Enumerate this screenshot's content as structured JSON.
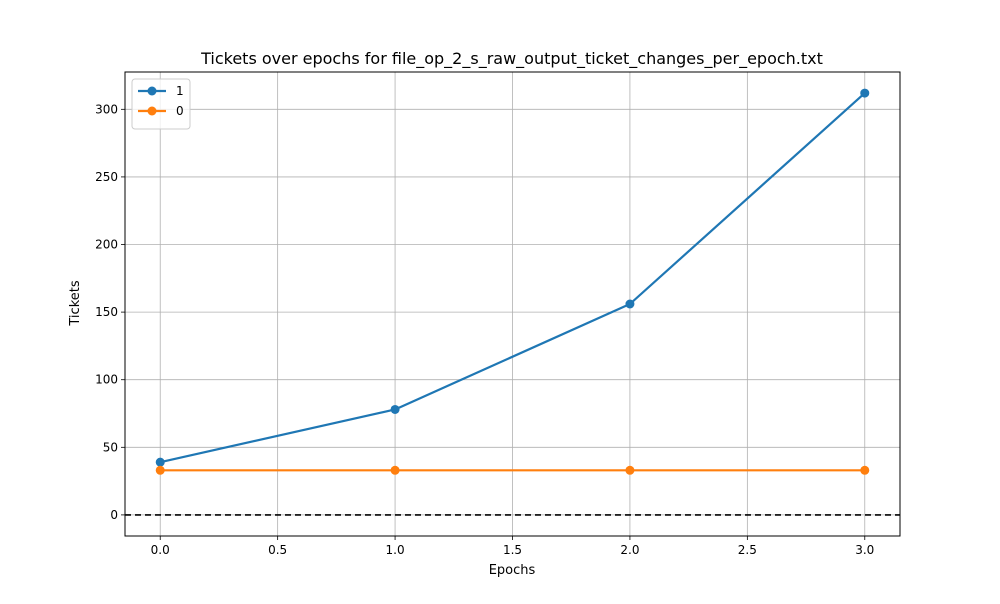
{
  "chart_data": {
    "type": "line",
    "title": "Tickets over epochs for file_op_2_s_raw_output_ticket_changes_per_epoch.txt",
    "xlabel": "Epochs",
    "ylabel": "Tickets",
    "x": [
      0.0,
      1.0,
      2.0,
      3.0
    ],
    "series": [
      {
        "name": "1",
        "values": [
          39,
          78,
          156,
          312
        ],
        "color": "#1f77b4",
        "marker": "circle"
      },
      {
        "name": "0",
        "values": [
          33,
          33,
          33,
          33
        ],
        "color": "#ff7f0e",
        "marker": "circle"
      }
    ],
    "xlim": [
      -0.15,
      3.15
    ],
    "ylim": [
      -15.6,
      327.6
    ],
    "x_ticks": [
      0.0,
      0.5,
      1.0,
      1.5,
      2.0,
      2.5,
      3.0
    ],
    "x_tick_labels": [
      "0.0",
      "0.5",
      "1.0",
      "1.5",
      "2.0",
      "2.5",
      "3.0"
    ],
    "y_ticks": [
      0,
      50,
      100,
      150,
      200,
      250,
      300
    ],
    "y_tick_labels": [
      "0",
      "50",
      "100",
      "150",
      "200",
      "250",
      "300"
    ],
    "reference_line": {
      "y": 0,
      "style": "dashed",
      "color": "#000000"
    },
    "grid": true,
    "legend_position": "top-left"
  }
}
